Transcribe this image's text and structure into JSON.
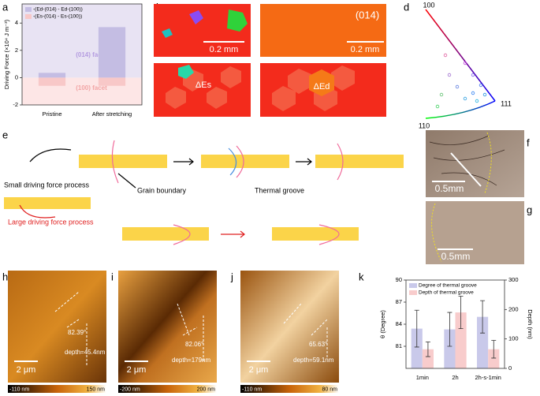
{
  "panel_labels": [
    "a",
    "b",
    "c",
    "d",
    "e",
    "f",
    "g",
    "h",
    "i",
    "j",
    "k"
  ],
  "chart_data": [
    {
      "type": "bar",
      "y_label": "Driving Force (×10⁴ J m⁻³)",
      "categories": [
        "Pristine",
        "After stretching"
      ],
      "series": [
        {
          "name": "-(Ed-(014) - Ed-(100))",
          "color": "#c4bde3",
          "values": [
            0.35,
            3.7
          ]
        },
        {
          "name": "-(Es-(014) - Es-(100))",
          "color": "#f8c8c8",
          "values": [
            -0.6,
            -0.6
          ]
        }
      ],
      "ylim": [
        -2,
        5.4
      ],
      "yticks": [
        -2,
        0,
        2,
        4
      ],
      "barmode": "overlay",
      "regions": [
        {
          "label": "(014) facet",
          "color": "#e8e3f3",
          "text_color": "#b49be0"
        },
        {
          "label": "(100) facet",
          "color": "#fde6e6",
          "text_color": "#f2a5a5"
        }
      ]
    },
    {
      "type": "bar",
      "y_label": "θ (Degree)",
      "y2_label": "Depth (nm)",
      "categories": [
        "1min",
        "2h",
        "2h-s-1min"
      ],
      "series": [
        {
          "name": "Degree of thermal groove",
          "color": "#c9c9ea",
          "values": [
            83.4,
            83.3,
            85.0
          ],
          "errors": [
            2.5,
            2.3,
            2.2
          ]
        },
        {
          "name": "Depth of thermal groove",
          "color": "#f8cccc",
          "values": [
            65,
            190,
            65
          ],
          "errors": [
            25,
            55,
            30
          ],
          "axis": "y2"
        }
      ],
      "ylim": [
        78,
        90
      ],
      "yticks": [
        81,
        84,
        87,
        90
      ],
      "y2lim": [
        0,
        300
      ],
      "y2ticks": [
        0,
        100,
        200,
        300
      ],
      "barmode": "group"
    }
  ],
  "panels": {
    "b": {
      "scale_bar": "0.2 mm",
      "annotation": "ΔEs"
    },
    "c": {
      "orientation": "(014)",
      "scale_bar": "0.2 mm",
      "annotation": "ΔEd"
    },
    "d": {
      "poles": [
        "100",
        "111",
        "110"
      ]
    },
    "e": {
      "small_process": "Small driving force process",
      "grain_boundary": "Grain boundary",
      "thermal_groove": "Thermal groove",
      "large_process": "Large driving force process"
    },
    "f": {
      "scale_bar": "0.5mm"
    },
    "g": {
      "scale_bar": "0.5mm"
    },
    "h": {
      "scale_bar": "2 μm",
      "angle": "82.39°",
      "depth": "depth=45.4nm",
      "colorbar": [
        "-110 nm",
        "150 nm"
      ]
    },
    "i": {
      "scale_bar": "2 μm",
      "angle": "82.06°",
      "depth": "depth=179nm",
      "colorbar": [
        "-200 nm",
        "200 nm"
      ]
    },
    "j": {
      "scale_bar": "2 μm",
      "angle": "65.63°",
      "depth": "depth=59.1nm",
      "colorbar": [
        "-110 nm",
        "80 nm"
      ]
    }
  }
}
